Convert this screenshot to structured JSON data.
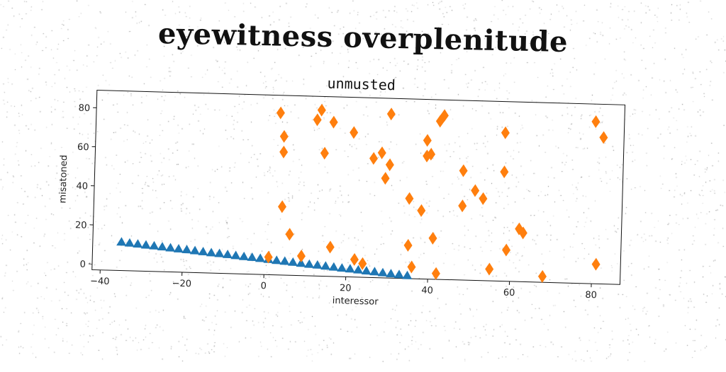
{
  "suptitle": "eyewitness overplenitude",
  "chart_data": {
    "type": "scatter",
    "title": "unmusted",
    "xlabel": "interessor",
    "ylabel": "misatoned",
    "xlim": [
      -42,
      87
    ],
    "ylim": [
      -3,
      89
    ],
    "xticks": [
      "−40",
      "−20",
      "0",
      "20",
      "40",
      "60",
      "80"
    ],
    "xtick_values": [
      -40,
      -20,
      0,
      20,
      40,
      60,
      80
    ],
    "yticks": [
      "0",
      "20",
      "40",
      "60",
      "80"
    ],
    "ytick_values": [
      0,
      20,
      40,
      60,
      80
    ],
    "grid": false,
    "series": [
      {
        "marker": "triangle",
        "color": "#1f77b4",
        "x": [
          -35,
          -33,
          -31,
          -29,
          -27,
          -25,
          -23,
          -21,
          -19,
          -17,
          -15,
          -13,
          -11,
          -9,
          -7,
          -5,
          -3,
          -1,
          1,
          3,
          5,
          7,
          9,
          11,
          13,
          15,
          17,
          19,
          21,
          23,
          25,
          27,
          29,
          31,
          33,
          35
        ],
        "y": [
          11.6,
          11.2,
          10.8,
          10.4,
          10.1,
          9.7,
          9.3,
          8.9,
          8.6,
          8.2,
          7.8,
          7.4,
          7.1,
          6.7,
          6.3,
          5.9,
          5.6,
          5.2,
          4.8,
          4.4,
          4.1,
          3.7,
          3.3,
          2.9,
          2.6,
          2.2,
          1.8,
          1.4,
          1.1,
          0.7,
          0.3,
          0,
          -0.4,
          -0.8,
          -1.1,
          -1.5
        ]
      },
      {
        "marker": "diamond",
        "color": "#ff7f0e",
        "x": [
          1,
          3,
          4,
          4,
          4,
          6,
          9,
          12,
          13,
          14,
          16,
          16,
          21,
          22,
          24,
          26,
          28,
          29,
          30,
          30,
          35,
          35,
          36,
          38,
          39,
          39,
          40,
          41,
          42,
          42,
          43,
          48,
          48,
          51,
          53,
          55,
          58,
          58,
          59,
          62,
          63,
          68,
          80,
          81,
          82
        ],
        "y": [
          6,
          80,
          60,
          68,
          32,
          18,
          7,
          77,
          82,
          60,
          76,
          12,
          71,
          6,
          4,
          58,
          61,
          48,
          55,
          81,
          38,
          14,
          3,
          32,
          60,
          68,
          61,
          18,
          78,
          0,
          81,
          53,
          35,
          43,
          39,
          3,
          53,
          73,
          13,
          24,
          22,
          0,
          80,
          7,
          72
        ]
      }
    ]
  }
}
